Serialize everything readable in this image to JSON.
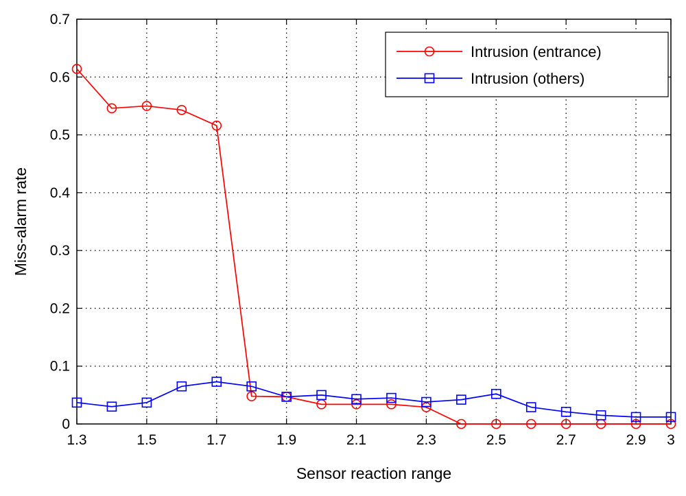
{
  "chart_data": {
    "type": "line",
    "title": "",
    "xlabel": "Sensor reaction range",
    "ylabel": "Miss-alarm rate",
    "xlim": [
      1.3,
      3.0
    ],
    "ylim": [
      0,
      0.7
    ],
    "x_ticks": [
      "1.3",
      "1.5",
      "1.7",
      "1.9",
      "2.1",
      "2.3",
      "2.5",
      "2.7",
      "2.9",
      "3"
    ],
    "y_ticks": [
      "0",
      "0.1",
      "0.2",
      "0.3",
      "0.4",
      "0.5",
      "0.6",
      "0.7"
    ],
    "grid": true,
    "legend_position": "top-right",
    "x": [
      1.3,
      1.4,
      1.5,
      1.6,
      1.7,
      1.8,
      1.9,
      2.0,
      2.1,
      2.2,
      2.3,
      2.4,
      2.5,
      2.6,
      2.7,
      2.8,
      2.9,
      3.0
    ],
    "series": [
      {
        "name": "Intrusion (entrance)",
        "color": "#ff0000",
        "marker": "circle",
        "values": [
          0.614,
          0.546,
          0.55,
          0.543,
          0.516,
          0.048,
          0.047,
          0.034,
          0.034,
          0.034,
          0.029,
          0.0,
          0.0,
          0.0,
          0.0,
          0.0,
          0.0,
          0.0
        ]
      },
      {
        "name": "Intrusion (others)",
        "color": "#0000ff",
        "marker": "square",
        "values": [
          0.037,
          0.03,
          0.037,
          0.065,
          0.073,
          0.065,
          0.047,
          0.05,
          0.043,
          0.045,
          0.038,
          0.042,
          0.052,
          0.029,
          0.021,
          0.015,
          0.012,
          0.012
        ]
      }
    ]
  }
}
